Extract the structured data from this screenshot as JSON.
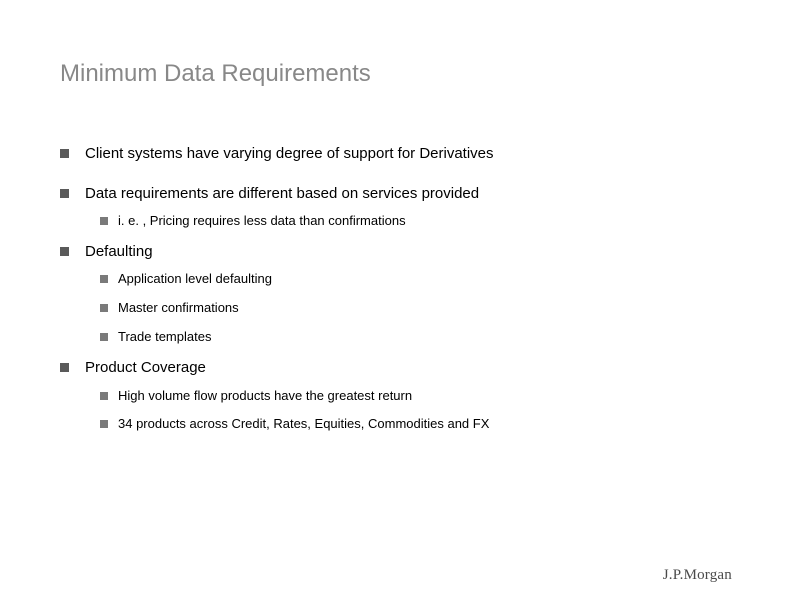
{
  "slide": {
    "title": "Minimum Data Requirements",
    "title_color": "#888888",
    "title_fontsize": 24,
    "background_color": "#ffffff",
    "bullet_level1_color": "#5a5a5a",
    "bullet_level2_color": "#7a7a7a",
    "bullet_level1_size": 9,
    "bullet_level2_size": 8,
    "text_color": "#000000",
    "text_fontsize_l1": 15,
    "text_fontsize_l2": 13
  },
  "content": {
    "item1": {
      "text": "Client systems have varying degree of support for Derivatives"
    },
    "item2": {
      "text": "Data requirements are different based on services provided",
      "sub1": "i. e. , Pricing requires less data than confirmations"
    },
    "item3": {
      "text": "Defaulting",
      "sub1": "Application level defaulting",
      "sub2": "Master confirmations",
      "sub3": "Trade templates"
    },
    "item4": {
      "text": "Product Coverage",
      "sub1": "High volume flow products have the greatest return",
      "sub2": "34 products across Credit, Rates, Equities, Commodities and FX"
    }
  },
  "footer": {
    "logo_text": "J.P.Morgan",
    "logo_color": "#4a4a4a",
    "logo_fontsize": 15
  }
}
